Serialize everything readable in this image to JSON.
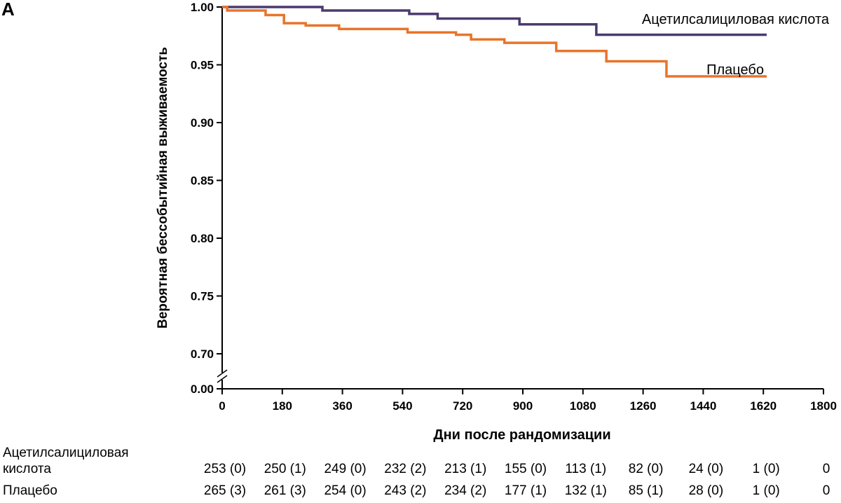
{
  "panel_label": "A",
  "chart_data": {
    "type": "line",
    "step": true,
    "xlabel": "Дни после рандомизации",
    "ylabel": "Вероятная бессобытийная выживаемость",
    "xlim": [
      0,
      1800
    ],
    "ylim": [
      0.7,
      1.0
    ],
    "y_axis_break": true,
    "y_break_label": "0.00",
    "x_ticks": [
      "0",
      "180",
      "360",
      "540",
      "720",
      "900",
      "1080",
      "1260",
      "1440",
      "1620",
      "1800"
    ],
    "y_ticks": [
      "0.70",
      "0.75",
      "0.80",
      "0.85",
      "0.90",
      "0.95",
      "1.00"
    ],
    "grid": false,
    "series": [
      {
        "name": "Ацетилсалициловая кислота",
        "color": "#4b3a6e",
        "x": [
          0,
          30,
          300,
          560,
          645,
          890,
          1120,
          1630
        ],
        "y": [
          1.0,
          1.0,
          0.997,
          0.994,
          0.99,
          0.985,
          0.976,
          0.976
        ]
      },
      {
        "name": "Плацебо",
        "color": "#e8742b",
        "x": [
          0,
          15,
          130,
          185,
          250,
          350,
          555,
          700,
          745,
          845,
          1000,
          1150,
          1330,
          1630
        ],
        "y": [
          1.0,
          0.997,
          0.993,
          0.986,
          0.984,
          0.981,
          0.978,
          0.976,
          0.972,
          0.969,
          0.962,
          0.953,
          0.94,
          0.94
        ]
      }
    ]
  },
  "risk_table": {
    "rows": [
      {
        "label_line1": "Ацетилсалициловая",
        "label_line2": "кислота",
        "values": [
          "253 (0)",
          "250 (1)",
          "249 (0)",
          "232 (2)",
          "213 (1)",
          "155 (0)",
          "113 (1)",
          "82 (0)",
          "24 (0)",
          "1 (0)",
          "0"
        ]
      },
      {
        "label_line1": "Плацебо",
        "values": [
          "265 (3)",
          "261 (3)",
          "254 (0)",
          "243 (2)",
          "234 (2)",
          "177 (1)",
          "132 (1)",
          "85 (1)",
          "28 (0)",
          "1 (0)",
          "0"
        ]
      }
    ]
  }
}
